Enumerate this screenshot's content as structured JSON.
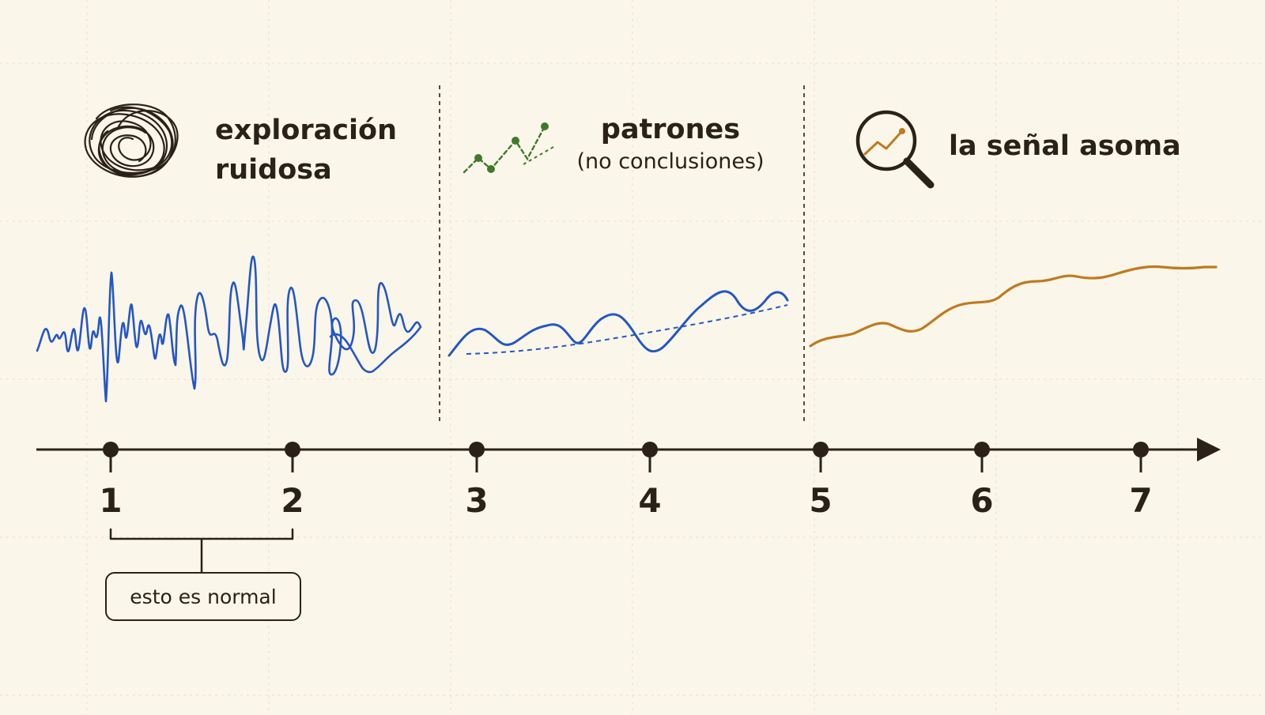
{
  "phases": [
    {
      "id": "phase1",
      "title_line1": "exploración",
      "title_line2": "ruidosa",
      "icon": "tangled-scribble-icon"
    },
    {
      "id": "phase2",
      "title": "patrones",
      "subtitle": "(no conclusiones)",
      "icon": "dotted-trend-line-icon"
    },
    {
      "id": "phase3",
      "title": "la señal asoma",
      "icon": "magnifier-trend-icon"
    }
  ],
  "timeline": {
    "ticks": [
      "1",
      "2",
      "3",
      "4",
      "5",
      "6",
      "7"
    ]
  },
  "callout": {
    "text": "esto es normal"
  },
  "colors": {
    "background": "#fbf6ea",
    "ink": "#2a2118",
    "noisy_signal": "#2457c5",
    "pattern_icon": "#3f7a2a",
    "clear_signal": "#c07a1f",
    "grid": "#e6ddcd"
  }
}
